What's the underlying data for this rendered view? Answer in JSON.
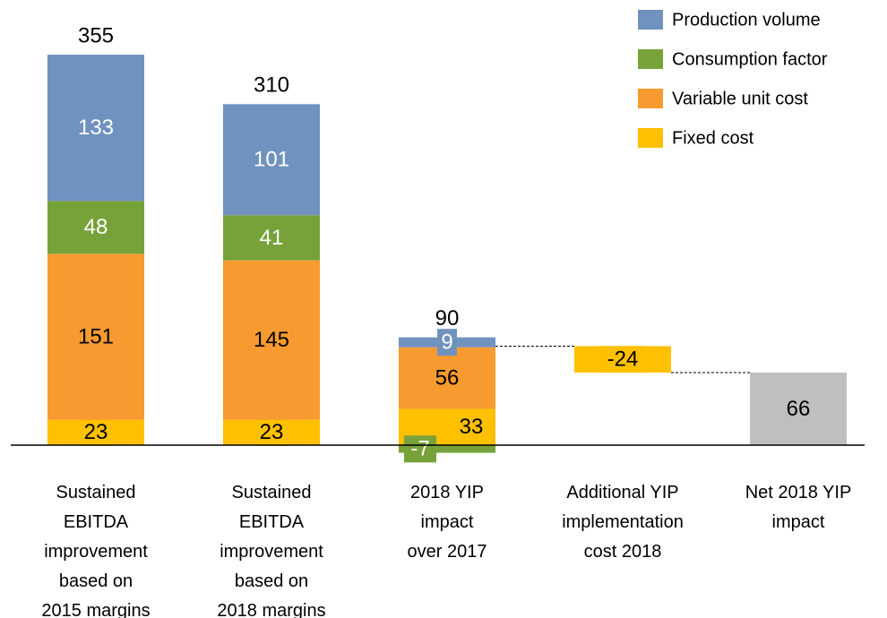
{
  "chart_data": {
    "type": "waterfall",
    "categories": [
      [
        "Sustained",
        "EBITDA",
        "improvement",
        "based on",
        "2015 margins"
      ],
      [
        "Sustained",
        "EBITDA",
        "improvement",
        "based on",
        "2018 margins"
      ],
      [
        "2018 YIP",
        "impact",
        "over 2017"
      ],
      [
        "Additional YIP",
        "implementation",
        "cost 2018"
      ],
      [
        "Net 2018 YIP",
        "impact"
      ]
    ],
    "series": [
      {
        "name": "Production volume",
        "color": "#7092be",
        "label_color": "#ffffff",
        "values": [
          133,
          101,
          9,
          null,
          null
        ]
      },
      {
        "name": "Consumption factor",
        "color": "#77a23a",
        "label_color": "#ffffff",
        "values": [
          48,
          41,
          -7,
          null,
          null
        ]
      },
      {
        "name": "Variable unit cost",
        "color": "#f79a2f",
        "label_color": "#000000",
        "values": [
          151,
          145,
          56,
          null,
          null
        ]
      },
      {
        "name": "Fixed cost",
        "color": "#ffc000",
        "label_color": "#000000",
        "values": [
          23,
          23,
          33,
          -24,
          null
        ]
      }
    ],
    "totals": [
      355,
      310,
      90,
      null,
      null
    ],
    "net_values": [
      null,
      null,
      null,
      null,
      66
    ],
    "net_color": "#bfbfbf",
    "ylim": [
      -20,
      400
    ],
    "legend": "top-right"
  }
}
